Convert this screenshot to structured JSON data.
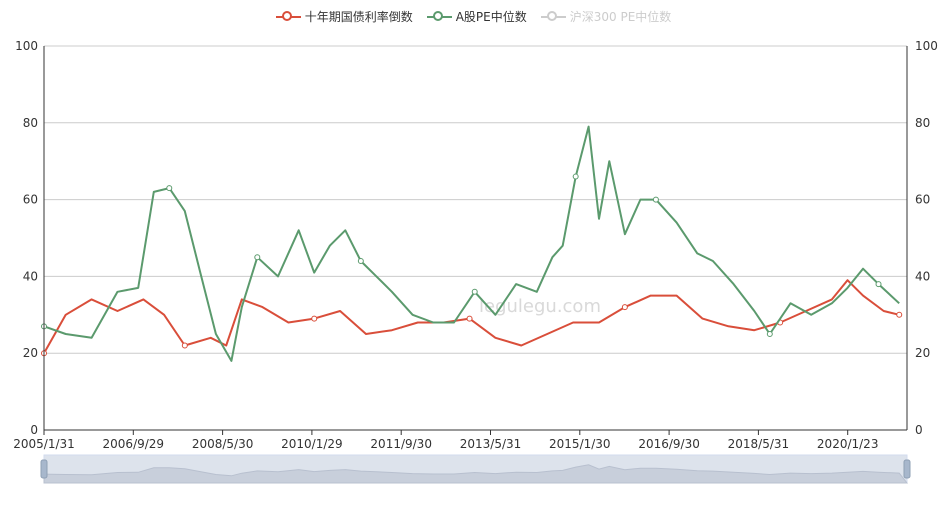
{
  "chart_data": {
    "type": "line",
    "title": "",
    "watermark": "legulegu.com",
    "x_ticks": [
      "2005/1/31",
      "2006/9/29",
      "2008/5/30",
      "2010/1/29",
      "2011/9/30",
      "2013/5/31",
      "2015/1/30",
      "2016/9/30",
      "2018/5/31",
      "2020/1/23"
    ],
    "y_left": {
      "min": 0,
      "max": 100,
      "ticks": [
        0,
        20,
        40,
        60,
        80,
        100
      ]
    },
    "y_right": {
      "min": 0,
      "max": 100,
      "ticks": [
        0,
        20,
        40,
        60,
        80,
        100
      ]
    },
    "legend_position": "top-center",
    "grid": true,
    "series": [
      {
        "name": "十年期国债利率倒数",
        "color": "#d94e3a",
        "visible": true,
        "x": [
          2005.08,
          2005.5,
          2006.0,
          2006.5,
          2007.0,
          2007.4,
          2007.8,
          2008.3,
          2008.6,
          2008.9,
          2009.3,
          2009.8,
          2010.3,
          2010.8,
          2011.3,
          2011.8,
          2012.3,
          2012.8,
          2013.3,
          2013.8,
          2014.3,
          2014.8,
          2015.3,
          2015.8,
          2016.3,
          2016.8,
          2017.3,
          2017.8,
          2018.3,
          2018.8,
          2019.3,
          2019.8,
          2020.3,
          2020.6,
          2020.9,
          2021.3,
          2021.6
        ],
        "values": [
          20,
          30,
          34,
          31,
          34,
          30,
          22,
          24,
          22,
          34,
          32,
          28,
          29,
          31,
          25,
          26,
          28,
          28,
          29,
          24,
          22,
          25,
          28,
          28,
          32,
          35,
          35,
          29,
          27,
          26,
          28,
          31,
          34,
          39,
          35,
          31,
          30
        ]
      },
      {
        "name": "A股PE中位数",
        "color": "#5b9a6d",
        "visible": true,
        "x": [
          2005.08,
          2005.5,
          2006.0,
          2006.5,
          2006.9,
          2007.2,
          2007.5,
          2007.8,
          2008.1,
          2008.4,
          2008.7,
          2008.9,
          2009.2,
          2009.6,
          2010.0,
          2010.3,
          2010.6,
          2010.9,
          2011.2,
          2011.5,
          2011.8,
          2012.2,
          2012.6,
          2013.0,
          2013.4,
          2013.8,
          2014.2,
          2014.6,
          2014.9,
          2015.1,
          2015.35,
          2015.6,
          2015.8,
          2016.0,
          2016.3,
          2016.6,
          2016.9,
          2017.3,
          2017.7,
          2018.0,
          2018.4,
          2018.8,
          2019.1,
          2019.5,
          2019.9,
          2020.3,
          2020.6,
          2020.9,
          2021.2,
          2021.6
        ],
        "values": [
          27,
          25,
          24,
          36,
          37,
          62,
          63,
          57,
          41,
          25,
          18,
          32,
          45,
          40,
          52,
          41,
          48,
          52,
          44,
          40,
          36,
          30,
          28,
          28,
          36,
          30,
          38,
          36,
          45,
          48,
          66,
          79,
          55,
          70,
          51,
          60,
          60,
          54,
          46,
          44,
          38,
          31,
          25,
          33,
          30,
          33,
          37,
          42,
          38,
          33
        ]
      },
      {
        "name": "沪深300 PE中位数",
        "color": "#cccccc",
        "visible": false,
        "x": [],
        "values": []
      }
    ]
  }
}
